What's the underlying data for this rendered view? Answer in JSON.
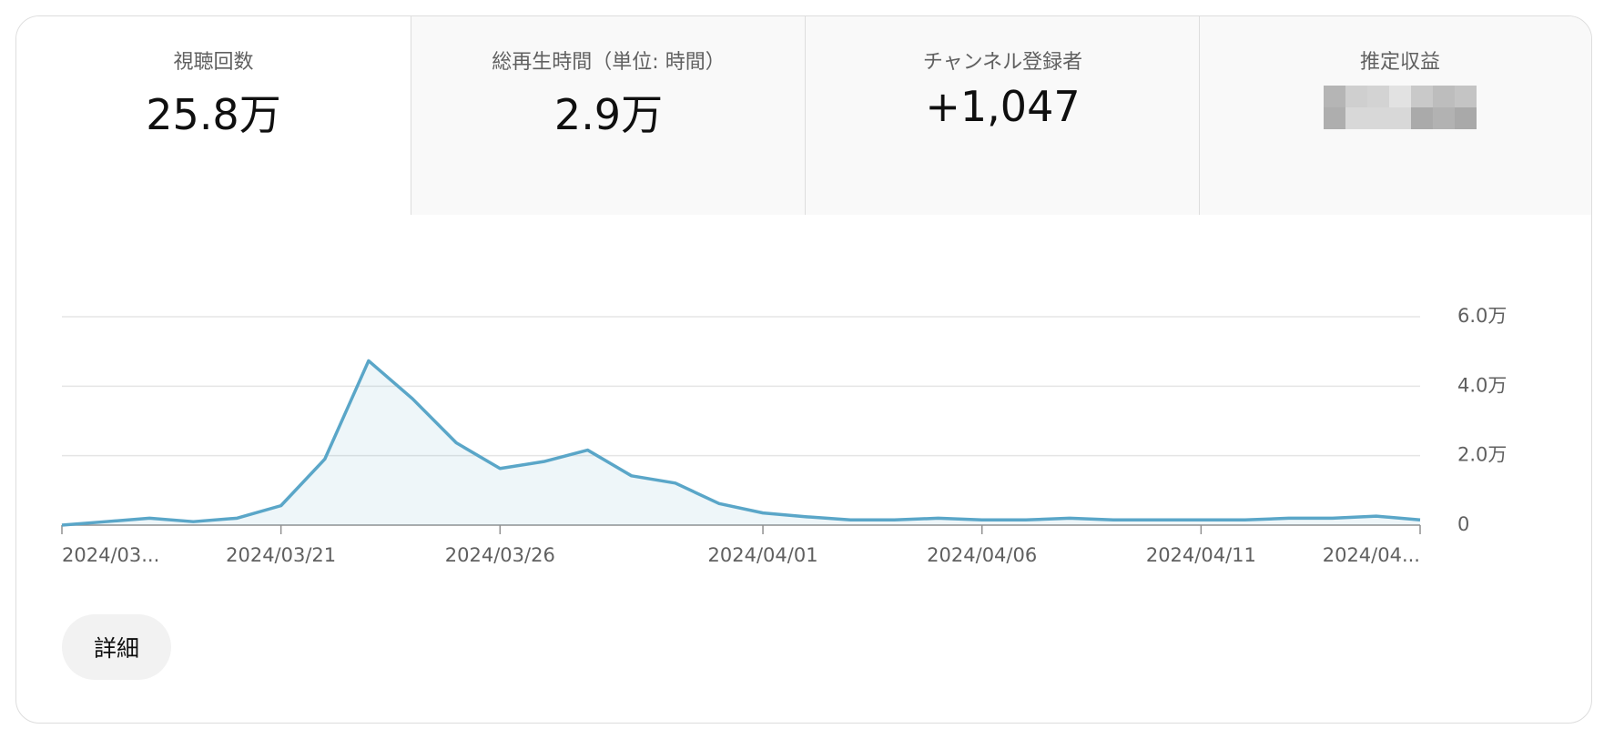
{
  "tabs": [
    {
      "label": "視聴回数",
      "value": "25.8万"
    },
    {
      "label": "総再生時間（単位: 時間）",
      "value": "2.9万"
    },
    {
      "label": "チャンネル登録者",
      "value": "+1,047"
    },
    {
      "label": "推定収益"
    }
  ],
  "button": "詳細",
  "chart_data": {
    "type": "line",
    "color": "#5aa6c8",
    "grid": true,
    "x": [
      "2024/03/16",
      "2024/03/17",
      "2024/03/18",
      "2024/03/19",
      "2024/03/20",
      "2024/03/21",
      "2024/03/22",
      "2024/03/23",
      "2024/03/24",
      "2024/03/25",
      "2024/03/26",
      "2024/03/27",
      "2024/03/28",
      "2024/03/29",
      "2024/03/30",
      "2024/03/31",
      "2024/04/01",
      "2024/04/02",
      "2024/04/03",
      "2024/04/04",
      "2024/04/05",
      "2024/04/06",
      "2024/04/07",
      "2024/04/08",
      "2024/04/09",
      "2024/04/10",
      "2024/04/11",
      "2024/04/12",
      "2024/04/13",
      "2024/04/14",
      "2024/04/15",
      "2024/04/16"
    ],
    "values": [
      0,
      1000,
      2000,
      1000,
      2000,
      5600,
      19000,
      47300,
      36400,
      23700,
      16300,
      18300,
      21600,
      14200,
      12100,
      6200,
      3500,
      2400,
      1500,
      1500,
      2000,
      1500,
      1500,
      2000,
      1500,
      1500,
      1500,
      1500,
      2000,
      2000,
      2600,
      1500
    ],
    "xticks": [
      {
        "value": "2024/03/16",
        "label": "2024/03..."
      },
      "2024/03/21",
      "2024/03/26",
      "2024/04/01",
      "2024/04/06",
      "2024/04/11",
      {
        "value": "2024/04/16",
        "label": "2024/04..."
      }
    ],
    "ylim": [
      0,
      60000
    ],
    "yticks": [
      0,
      {
        "value": 20000,
        "label": "2.0万"
      },
      {
        "value": 40000,
        "label": "4.0万"
      },
      {
        "value": 60000,
        "label": "6.0万"
      }
    ]
  }
}
